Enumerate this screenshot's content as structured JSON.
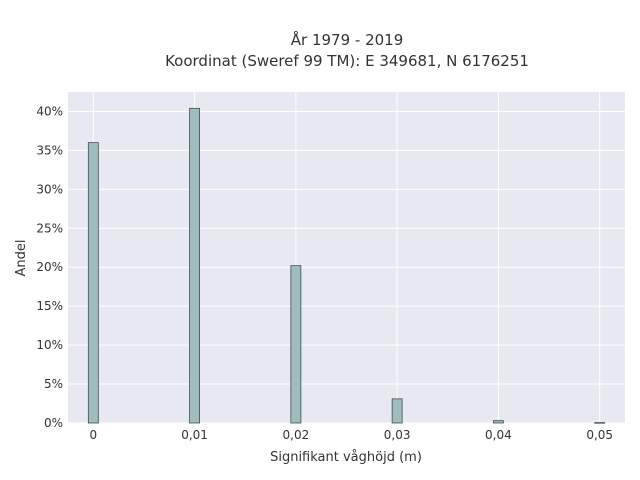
{
  "chart_data": {
    "type": "bar",
    "title_line1": "År 1979 - 2019",
    "title_line2": "Koordinat (Sweref 99 TM): E 349681, N 6176251",
    "xlabel": "Signifikant våghöjd (m)",
    "ylabel": "Andel",
    "x_ticks": [
      "0",
      "0,01",
      "0,02",
      "0,03",
      "0,04",
      "0,05"
    ],
    "y_ticks": [
      "0%",
      "5%",
      "10%",
      "15%",
      "20%",
      "25%",
      "30%",
      "35%",
      "40%"
    ],
    "xlim": [
      -0.0025,
      0.0525
    ],
    "ylim": [
      0,
      42.5
    ],
    "x": [
      0.0,
      0.01,
      0.02,
      0.03,
      0.04,
      0.05
    ],
    "values": [
      36.0,
      40.4,
      20.2,
      3.1,
      0.3,
      0.05
    ],
    "unit": "%",
    "grid": true,
    "colors": {
      "bar_fill": "#a1bcbd",
      "bar_stroke": "#3d4f50",
      "plot_bg": "#e8e8f0",
      "grid": "#ffffff",
      "text": "#333333"
    }
  }
}
